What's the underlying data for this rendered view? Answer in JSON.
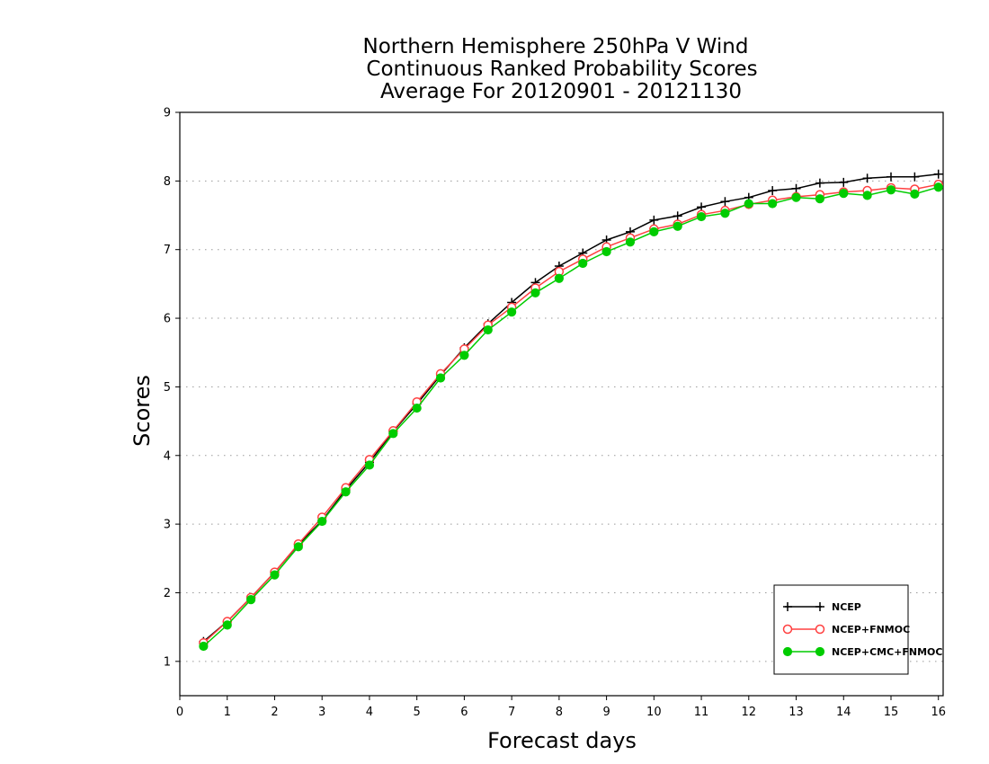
{
  "chart_data": {
    "type": "line",
    "title": [
      "Northern Hemisphere 250hPa V Wind",
      "Continuous Ranked Probability Scores",
      "Average For 20120901 - 20121130"
    ],
    "xlabel": "Forecast days",
    "ylabel": "Scores",
    "xlim": [
      0,
      16.1
    ],
    "ylim": [
      0.5,
      9
    ],
    "xticks": [
      0,
      1,
      2,
      3,
      4,
      5,
      6,
      7,
      8,
      9,
      10,
      11,
      12,
      13,
      14,
      15,
      16
    ],
    "yticks": [
      1,
      2,
      3,
      4,
      5,
      6,
      7,
      8,
      9
    ],
    "grid": "dotted horizontal",
    "legend_position": "bottom-right",
    "x": [
      0.5,
      1,
      1.5,
      2,
      2.5,
      3,
      3.5,
      4,
      4.5,
      5,
      5.5,
      6,
      6.5,
      7,
      7.5,
      8,
      8.5,
      9,
      9.5,
      10,
      10.5,
      11,
      11.5,
      12,
      12.5,
      13,
      13.5,
      14,
      14.5,
      15,
      15.5,
      16
    ],
    "series": [
      {
        "name": "NCEP",
        "color": "#000000",
        "marker": "plus",
        "values": [
          1.29,
          1.58,
          1.93,
          2.3,
          2.7,
          3.05,
          3.5,
          3.9,
          4.35,
          4.75,
          5.17,
          5.57,
          5.92,
          6.23,
          6.52,
          6.76,
          6.95,
          7.14,
          7.26,
          7.43,
          7.49,
          7.62,
          7.7,
          7.76,
          7.86,
          7.89,
          7.97,
          7.98,
          8.04,
          8.06,
          8.06,
          8.1
        ]
      },
      {
        "name": "NCEP+FNMOC",
        "color": "#ff4040",
        "marker": "open-circle",
        "values": [
          1.27,
          1.58,
          1.93,
          2.3,
          2.71,
          3.1,
          3.53,
          3.94,
          4.36,
          4.78,
          5.19,
          5.55,
          5.9,
          6.16,
          6.44,
          6.68,
          6.86,
          7.04,
          7.17,
          7.3,
          7.37,
          7.51,
          7.57,
          7.66,
          7.72,
          7.77,
          7.8,
          7.84,
          7.86,
          7.9,
          7.88,
          7.95
        ]
      },
      {
        "name": "NCEP+CMC+FNMOC",
        "color": "#00cc00",
        "marker": "filled-circle",
        "values": [
          1.22,
          1.53,
          1.9,
          2.26,
          2.67,
          3.04,
          3.47,
          3.86,
          4.32,
          4.69,
          5.13,
          5.46,
          5.83,
          6.09,
          6.37,
          6.58,
          6.8,
          6.97,
          7.11,
          7.26,
          7.34,
          7.48,
          7.53,
          7.67,
          7.67,
          7.76,
          7.74,
          7.82,
          7.79,
          7.87,
          7.81,
          7.91
        ]
      }
    ]
  }
}
